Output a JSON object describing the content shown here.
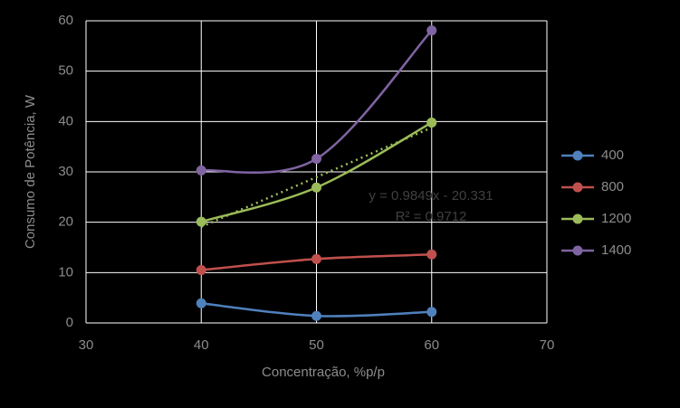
{
  "chart_data": {
    "type": "line",
    "x_label": "Concentração, %p/p",
    "y_label": "Consumo de Potência, W",
    "x": [
      40,
      50,
      60
    ],
    "series": [
      {
        "name": "400",
        "color": "#4f81bd",
        "values": [
          3.9,
          1.4,
          2.2
        ]
      },
      {
        "name": "800",
        "color": "#c0504d",
        "values": [
          10.5,
          12.7,
          13.6
        ]
      },
      {
        "name": "1200",
        "color": "#9bbb59",
        "values": [
          20.1,
          26.9,
          39.8
        ]
      },
      {
        "name": "1400",
        "color": "#8064a2",
        "values": [
          30.3,
          32.6,
          58.1
        ]
      }
    ],
    "trendline": {
      "x": [
        40,
        60
      ],
      "values": [
        19.1,
        38.8
      ],
      "color": "#9bbb59",
      "equation": "y = 0.9849x - 20.331",
      "r_squared": "R² = 0.9712"
    },
    "xlim": [
      30,
      70
    ],
    "xticks": [
      30,
      40,
      50,
      60,
      70
    ],
    "ylim": [
      0,
      60
    ],
    "yticks": [
      0,
      10,
      20,
      30,
      40,
      50,
      60
    ],
    "grid": true,
    "legend": "right"
  }
}
